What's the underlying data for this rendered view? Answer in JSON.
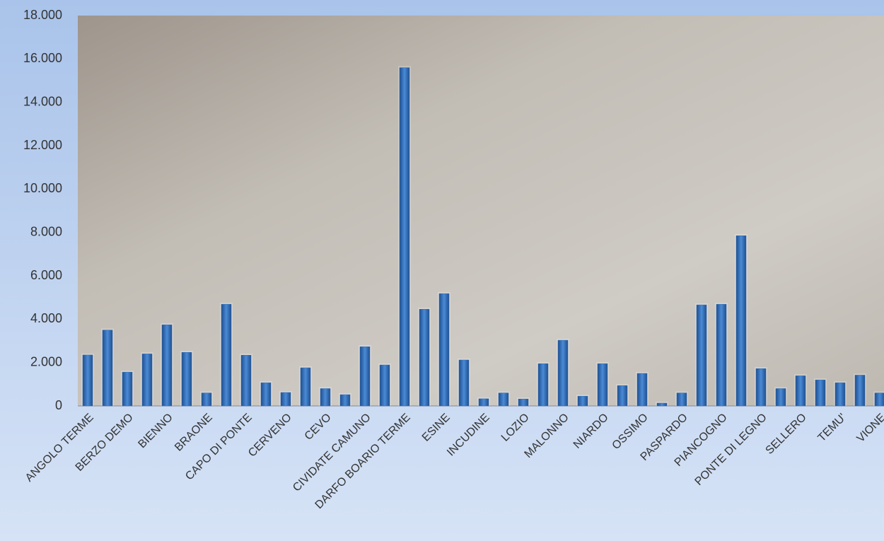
{
  "chart_data": {
    "type": "bar",
    "categories": [
      "ANGOLO TERME",
      null,
      "BERZO DEMO",
      null,
      "BIENNO",
      null,
      "BRAONE",
      null,
      "CAPO DI PONTE",
      null,
      "CERVENO",
      null,
      "CEVO",
      null,
      "CIVIDATE CAMUNO",
      null,
      "DARFO BOARIO TERME",
      null,
      "ESINE",
      null,
      "INCUDINE",
      null,
      "LOZIO",
      null,
      "MALONNO",
      null,
      "NIARDO",
      null,
      "OSSIMO",
      null,
      "PASPARDO",
      null,
      "PIANCOGNO",
      null,
      "PONTE DI LEGNO",
      null,
      "SELLERO",
      null,
      "TEMU'",
      null,
      "VIONE"
    ],
    "values": [
      2350,
      3500,
      1560,
      2400,
      3740,
      2470,
      600,
      4690,
      2340,
      1070,
      620,
      1760,
      800,
      520,
      2730,
      1890,
      15600,
      4460,
      5180,
      2120,
      330,
      600,
      320,
      1950,
      3030,
      450,
      1950,
      940,
      1500,
      130,
      600,
      4660,
      4690,
      7850,
      1720,
      800,
      1390,
      1200,
      1070,
      1420,
      600
    ],
    "color": "#2e6bb5",
    "ylim": [
      0,
      18000
    ],
    "yticks": [
      0,
      {
        "value": 2000,
        "label": "2.000"
      },
      {
        "value": 4000,
        "label": "4.000"
      },
      {
        "value": 6000,
        "label": "6.000"
      },
      {
        "value": 8000,
        "label": "8.000"
      },
      {
        "value": 10000,
        "label": "10.000"
      },
      {
        "value": 12000,
        "label": "12.000"
      },
      {
        "value": 14000,
        "label": "14.000"
      },
      {
        "value": 16000,
        "label": "16.000"
      },
      {
        "value": 18000,
        "label": "18.000"
      }
    ],
    "grid": false
  }
}
